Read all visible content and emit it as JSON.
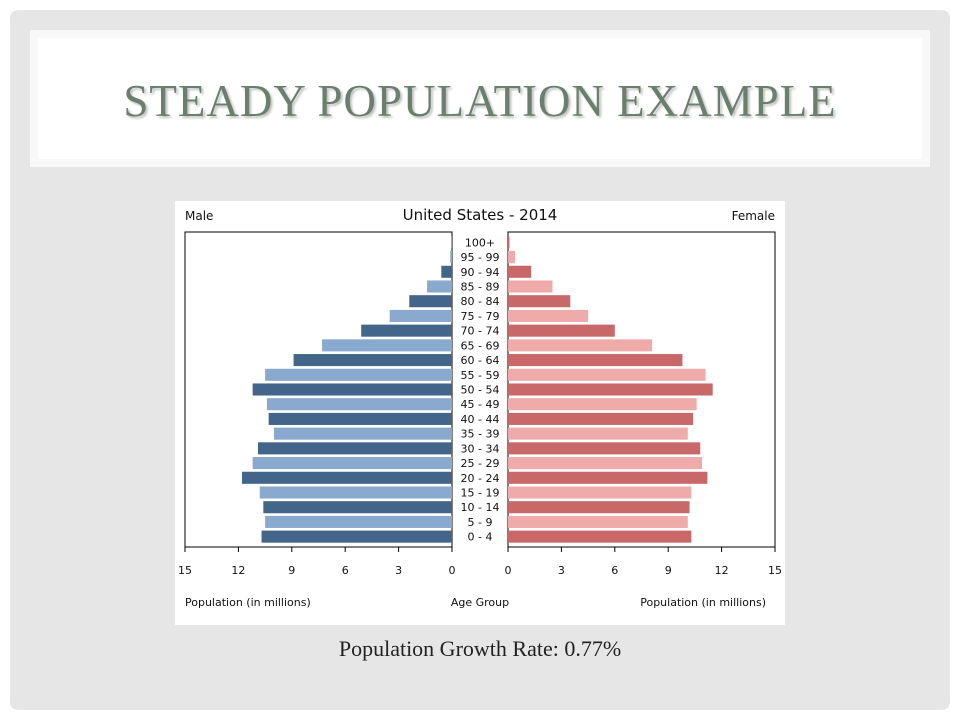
{
  "slide": {
    "title": "STEADY POPULATION EXAMPLE",
    "caption": "Population Growth Rate: 0.77%"
  },
  "colors": {
    "male_dark": "#44658a",
    "male_light": "#8aa9ce",
    "female_dark": "#c86868",
    "female_light": "#efaaaa",
    "title": "#6b7f6e"
  },
  "chart_data": {
    "type": "bar",
    "title": "United States - 2014",
    "left_label": "Male",
    "right_label": "Female",
    "xlabel_left": "Population (in millions)",
    "xlabel_center": "Age Group",
    "xlabel_right": "Population (in millions)",
    "xlim": [
      0,
      15
    ],
    "ticks_left": [
      "15",
      "12",
      "9",
      "6",
      "3",
      "0"
    ],
    "ticks_right": [
      "0",
      "3",
      "6",
      "9",
      "12",
      "15"
    ],
    "categories": [
      "100+",
      "95 - 99",
      "90 - 94",
      "85 - 89",
      "80 - 84",
      "75 - 79",
      "70 - 74",
      "65 - 69",
      "60 - 64",
      "55 - 59",
      "50 - 54",
      "45 - 49",
      "40 - 44",
      "35 - 39",
      "30 - 34",
      "25 - 29",
      "20 - 24",
      "15 - 19",
      "10 - 14",
      "5 - 9",
      "0 - 4"
    ],
    "series": [
      {
        "name": "Male",
        "values": [
          0.02,
          0.1,
          0.6,
          1.4,
          2.4,
          3.5,
          5.1,
          7.3,
          8.9,
          10.5,
          11.2,
          10.4,
          10.3,
          10.0,
          10.9,
          11.2,
          11.8,
          10.8,
          10.6,
          10.5,
          10.7
        ]
      },
      {
        "name": "Female",
        "values": [
          0.08,
          0.4,
          1.3,
          2.5,
          3.5,
          4.5,
          6.0,
          8.1,
          9.8,
          11.1,
          11.5,
          10.6,
          10.4,
          10.1,
          10.8,
          10.9,
          11.2,
          10.3,
          10.2,
          10.1,
          10.3
        ]
      }
    ]
  }
}
